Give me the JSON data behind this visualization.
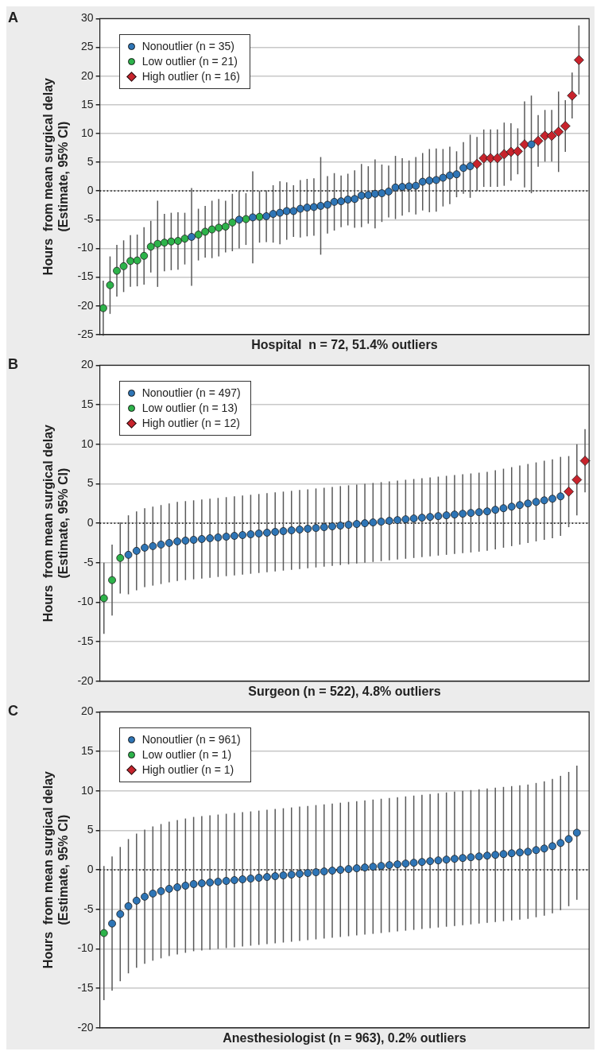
{
  "chart_data": [
    {
      "type": "scatter",
      "title": "A",
      "xlabel": "Hospital  n = 72, 51.4% outliers",
      "ylabel": "Hours  from mean surgical delay\n(Estimate, 95% CI)",
      "categories": [
        null,
        null,
        null,
        null,
        null,
        null,
        null,
        null,
        null,
        null,
        null,
        null,
        null,
        null,
        null,
        null,
        null,
        null,
        null,
        null,
        null,
        null,
        null,
        null,
        null,
        null,
        null,
        null,
        null,
        null,
        null,
        null,
        null,
        null,
        null,
        null,
        null,
        null,
        null,
        null,
        null,
        null,
        null,
        null,
        null,
        null,
        null,
        null,
        null,
        null,
        null,
        null,
        null,
        null,
        null,
        null,
        null,
        null,
        null,
        null,
        null,
        null,
        null,
        null,
        null,
        null,
        null,
        null,
        null,
        null,
        null,
        null
      ],
      "ylim": [
        -25,
        30
      ],
      "yticks": [
        -25,
        -20,
        -15,
        -10,
        -5,
        0,
        5,
        10,
        15,
        20,
        25,
        30
      ],
      "tick_labels": "y",
      "grid": "y",
      "legend": "top left",
      "ref_lines": [
        {
          "axis": "y",
          "value": 0,
          "line_style": "dotted",
          "color": "#222222"
        }
      ],
      "series": [
        {
          "name": "Nonoutlier (n = 35)",
          "color": "#2e75b6",
          "marker": "circle",
          "values": [
            null,
            null,
            null,
            null,
            null,
            null,
            null,
            null,
            null,
            null,
            null,
            null,
            null,
            -8.0,
            null,
            null,
            null,
            null,
            null,
            null,
            -5.0,
            null,
            -4.6,
            null,
            -4.4,
            -4.0,
            -3.8,
            -3.5,
            -3.5,
            -3.1,
            -2.9,
            -2.8,
            -2.6,
            -2.4,
            -1.9,
            -1.8,
            -1.5,
            -1.4,
            -0.8,
            -0.7,
            -0.5,
            -0.4,
            -0.1,
            0.6,
            0.7,
            0.8,
            0.9,
            1.6,
            1.8,
            1.9,
            2.3,
            2.7,
            2.9,
            4.0,
            4.3,
            null,
            null,
            null,
            null,
            null,
            null,
            null,
            null,
            8.1,
            null,
            null,
            null,
            null,
            null,
            null,
            null,
            null
          ],
          "errors": [
            null,
            null,
            null,
            null,
            null,
            null,
            null,
            null,
            null,
            null,
            null,
            null,
            null,
            8.5,
            null,
            null,
            null,
            null,
            null,
            null,
            5,
            null,
            8,
            null,
            4.5,
            5,
            5.5,
            5,
            4.5,
            5,
            5,
            5,
            8.5,
            5,
            5,
            4.5,
            4.5,
            5,
            5.5,
            5,
            6,
            5,
            4.5,
            5.5,
            5,
            4.5,
            5,
            5,
            5.5,
            5.5,
            5,
            5,
            4,
            4.5,
            5.5,
            null,
            null,
            null,
            null,
            null,
            null,
            null,
            null,
            8.5,
            null,
            null,
            null,
            null,
            null,
            null,
            null,
            null
          ]
        },
        {
          "name": "Low outlier (n = 21)",
          "color": "#2db34a",
          "marker": "circle",
          "values": [
            -20.4,
            -16.4,
            -13.9,
            -13.1,
            -12.2,
            -12.1,
            -11.3,
            -9.7,
            -9.2,
            -9.0,
            -8.8,
            -8.7,
            -8.3,
            null,
            -7.6,
            -7.1,
            -6.7,
            -6.4,
            -6.2,
            -5.5,
            null,
            -4.9,
            null,
            -4.5,
            null,
            null,
            null,
            null,
            null,
            null,
            null,
            null,
            null,
            null,
            null,
            null,
            null,
            null,
            null,
            null,
            null,
            null,
            null,
            null,
            null,
            null,
            null,
            null,
            null,
            null,
            null,
            null,
            null,
            null,
            null,
            null,
            null,
            null,
            null,
            null,
            null,
            null,
            null,
            null,
            null,
            null,
            null,
            null,
            null,
            null,
            null,
            null
          ],
          "errors": [
            4.8,
            5,
            4.5,
            4.5,
            4.5,
            4.5,
            5,
            4.5,
            7.5,
            5,
            5,
            5,
            4.5,
            null,
            4.5,
            4.5,
            5,
            5,
            4.5,
            5,
            null,
            4.5,
            null,
            4.5,
            null,
            null,
            null,
            null,
            null,
            null,
            null,
            null,
            null,
            null,
            null,
            null,
            null,
            null,
            null,
            null,
            null,
            null,
            null,
            null,
            null,
            null,
            null,
            null,
            null,
            null,
            null,
            null,
            null,
            null,
            null,
            null,
            null,
            null,
            null,
            null,
            null,
            null,
            null,
            null,
            null,
            null,
            null,
            null,
            null,
            null,
            null,
            null
          ]
        },
        {
          "name": "High outlier (n = 16)",
          "color": "#c8232c",
          "marker": "diamond",
          "values": [
            null,
            null,
            null,
            null,
            null,
            null,
            null,
            null,
            null,
            null,
            null,
            null,
            null,
            null,
            null,
            null,
            null,
            null,
            null,
            null,
            null,
            null,
            null,
            null,
            null,
            null,
            null,
            null,
            null,
            null,
            null,
            null,
            null,
            null,
            null,
            null,
            null,
            null,
            null,
            null,
            null,
            null,
            null,
            null,
            null,
            null,
            null,
            null,
            null,
            null,
            null,
            null,
            null,
            null,
            null,
            4.7,
            5.7,
            5.7,
            5.7,
            6.4,
            6.8,
            6.9,
            8.1,
            null,
            8.7,
            9.6,
            9.6,
            10.3,
            11.3,
            16.6,
            22.8,
            null
          ],
          "errors": [
            null,
            null,
            null,
            null,
            null,
            null,
            null,
            null,
            null,
            null,
            null,
            null,
            null,
            null,
            null,
            null,
            null,
            null,
            null,
            null,
            null,
            null,
            null,
            null,
            null,
            null,
            null,
            null,
            null,
            null,
            null,
            null,
            null,
            null,
            null,
            null,
            null,
            null,
            null,
            null,
            null,
            null,
            null,
            null,
            null,
            null,
            null,
            null,
            null,
            null,
            null,
            null,
            null,
            null,
            null,
            4.7,
            5,
            5,
            5,
            5.5,
            5,
            4,
            7.5,
            null,
            4.5,
            4.5,
            4.5,
            7,
            4.5,
            4,
            6,
            null
          ]
        }
      ]
    },
    {
      "type": "scatter",
      "title": "B",
      "xlabel": "Surgeon (n = 522), 4.8% outliers",
      "ylabel": "Hours  from mean surgical delay\n(Estimate, 95% CI)",
      "categories": [
        null,
        null,
        null,
        null,
        null,
        null,
        null,
        null,
        null,
        null,
        null,
        null,
        null,
        null,
        null,
        null,
        null,
        null,
        null,
        null,
        null,
        null,
        null,
        null,
        null,
        null,
        null,
        null,
        null,
        null,
        null,
        null,
        null,
        null,
        null,
        null,
        null,
        null,
        null,
        null,
        null,
        null,
        null,
        null,
        null,
        null,
        null,
        null,
        null,
        null,
        null,
        null,
        null,
        null,
        null,
        null,
        null,
        null,
        null,
        null
      ],
      "ylim": [
        -20,
        20
      ],
      "yticks": [
        -20,
        -15,
        -10,
        -5,
        0,
        5,
        10,
        15,
        20
      ],
      "tick_labels": "y",
      "grid": "y",
      "legend": "top left",
      "ref_lines": [
        {
          "axis": "y",
          "value": 0,
          "line_style": "dotted",
          "color": "#222222"
        }
      ],
      "series": [
        {
          "name": "Nonoutlier (n = 497)",
          "color": "#2e75b6",
          "marker": "circle",
          "values": [
            null,
            null,
            null,
            -4.0,
            -3.5,
            -3.1,
            -2.9,
            -2.7,
            -2.5,
            -2.3,
            -2.2,
            -2.1,
            -2.0,
            -1.9,
            -1.8,
            -1.7,
            -1.6,
            -1.5,
            -1.4,
            -1.3,
            -1.2,
            -1.1,
            -1.0,
            -0.9,
            -0.8,
            -0.7,
            -0.6,
            -0.5,
            -0.4,
            -0.3,
            -0.2,
            -0.1,
            0.0,
            0.1,
            0.2,
            0.3,
            0.4,
            0.5,
            0.6,
            0.7,
            0.8,
            0.9,
            1.0,
            1.1,
            1.2,
            1.3,
            1.4,
            1.5,
            1.7,
            1.9,
            2.1,
            2.3,
            2.5,
            2.7,
            2.9,
            3.1,
            3.4,
            null,
            null,
            null
          ],
          "errors": [
            null,
            null,
            null,
            5,
            5,
            5,
            5,
            5,
            5,
            5,
            5,
            5,
            5,
            5,
            5,
            5,
            5,
            5,
            5,
            5,
            5,
            5,
            5,
            5,
            5,
            5,
            5,
            5,
            5,
            5,
            5,
            5,
            5,
            5,
            5,
            5,
            5,
            5,
            5,
            5,
            5,
            5,
            5,
            5,
            5,
            5,
            5,
            5,
            5,
            5,
            5,
            5,
            5,
            5,
            5,
            5,
            5,
            null,
            null,
            null
          ]
        },
        {
          "name": "Low outlier (n = 13)",
          "color": "#2db34a",
          "marker": "circle",
          "values": [
            -9.5,
            -7.2,
            -4.4,
            null,
            null,
            null,
            null,
            null,
            null,
            null,
            null,
            null,
            null,
            null,
            null,
            null,
            null,
            null,
            null,
            null,
            null,
            null,
            null,
            null,
            null,
            null,
            null,
            null,
            null,
            null,
            null,
            null,
            null,
            null,
            null,
            null,
            null,
            null,
            null,
            null,
            null,
            null,
            null,
            null,
            null,
            null,
            null,
            null,
            null,
            null,
            null,
            null,
            null,
            null,
            null,
            null,
            null,
            null,
            null,
            null
          ],
          "errors": [
            4.5,
            4.5,
            4.5,
            null,
            null,
            null,
            null,
            null,
            null,
            null,
            null,
            null,
            null,
            null,
            null,
            null,
            null,
            null,
            null,
            null,
            null,
            null,
            null,
            null,
            null,
            null,
            null,
            null,
            null,
            null,
            null,
            null,
            null,
            null,
            null,
            null,
            null,
            null,
            null,
            null,
            null,
            null,
            null,
            null,
            null,
            null,
            null,
            null,
            null,
            null,
            null,
            null,
            null,
            null,
            null,
            null,
            null,
            null,
            null,
            null
          ]
        },
        {
          "name": "High outlier (n = 12)",
          "color": "#c8232c",
          "marker": "diamond",
          "values": [
            null,
            null,
            null,
            null,
            null,
            null,
            null,
            null,
            null,
            null,
            null,
            null,
            null,
            null,
            null,
            null,
            null,
            null,
            null,
            null,
            null,
            null,
            null,
            null,
            null,
            null,
            null,
            null,
            null,
            null,
            null,
            null,
            null,
            null,
            null,
            null,
            null,
            null,
            null,
            null,
            null,
            null,
            null,
            null,
            null,
            null,
            null,
            null,
            null,
            null,
            null,
            null,
            null,
            null,
            null,
            null,
            null,
            4.0,
            5.5,
            7.9
          ],
          "errors": [
            null,
            null,
            null,
            null,
            null,
            null,
            null,
            null,
            null,
            null,
            null,
            null,
            null,
            null,
            null,
            null,
            null,
            null,
            null,
            null,
            null,
            null,
            null,
            null,
            null,
            null,
            null,
            null,
            null,
            null,
            null,
            null,
            null,
            null,
            null,
            null,
            null,
            null,
            null,
            null,
            null,
            null,
            null,
            null,
            null,
            null,
            null,
            null,
            null,
            null,
            null,
            null,
            null,
            null,
            null,
            null,
            null,
            4.5,
            4.5,
            4
          ]
        }
      ]
    },
    {
      "type": "scatter",
      "title": "C",
      "xlabel": "Anesthesiologist (n = 963), 0.2% outliers",
      "ylabel": "Hours  from mean surgical delay\n(Estimate, 95% CI)",
      "categories": [
        null,
        null,
        null,
        null,
        null,
        null,
        null,
        null,
        null,
        null,
        null,
        null,
        null,
        null,
        null,
        null,
        null,
        null,
        null,
        null,
        null,
        null,
        null,
        null,
        null,
        null,
        null,
        null,
        null,
        null,
        null,
        null,
        null,
        null,
        null,
        null,
        null,
        null,
        null,
        null,
        null,
        null,
        null,
        null,
        null,
        null,
        null,
        null,
        null,
        null,
        null,
        null,
        null,
        null,
        null,
        null,
        null,
        null,
        null,
        null
      ],
      "ylim": [
        -20,
        20
      ],
      "yticks": [
        -20,
        -15,
        -10,
        -5,
        0,
        5,
        10,
        15,
        20
      ],
      "tick_labels": "y",
      "grid": "y",
      "legend": "top left",
      "ref_lines": [
        {
          "axis": "y",
          "value": 0,
          "line_style": "dotted",
          "color": "#222222"
        }
      ],
      "series": [
        {
          "name": "Nonoutlier (n = 961)",
          "color": "#2e75b6",
          "marker": "circle",
          "values": [
            null,
            -6.8,
            -5.6,
            -4.6,
            -3.9,
            -3.4,
            -3.0,
            -2.7,
            -2.4,
            -2.2,
            -2.0,
            -1.8,
            -1.7,
            -1.6,
            -1.5,
            -1.4,
            -1.3,
            -1.2,
            -1.1,
            -1.0,
            -0.9,
            -0.8,
            -0.7,
            -0.6,
            -0.5,
            -0.4,
            -0.3,
            -0.2,
            -0.1,
            0.0,
            0.1,
            0.2,
            0.3,
            0.4,
            0.5,
            0.6,
            0.7,
            0.8,
            0.9,
            1.0,
            1.1,
            1.2,
            1.3,
            1.4,
            1.5,
            1.6,
            1.7,
            1.8,
            1.9,
            2.0,
            2.1,
            2.2,
            2.3,
            2.5,
            2.7,
            3.0,
            3.4,
            3.9,
            4.7,
            null
          ],
          "errors": [
            null,
            8.5,
            8.5,
            8.5,
            8.5,
            8.5,
            8.5,
            8.5,
            8.5,
            8.5,
            8.5,
            8.5,
            8.5,
            8.5,
            8.5,
            8.5,
            8.5,
            8.5,
            8.5,
            8.5,
            8.5,
            8.5,
            8.5,
            8.5,
            8.5,
            8.5,
            8.5,
            8.5,
            8.5,
            8.5,
            8.5,
            8.5,
            8.5,
            8.5,
            8.5,
            8.5,
            8.5,
            8.5,
            8.5,
            8.5,
            8.5,
            8.5,
            8.5,
            8.5,
            8.5,
            8.5,
            8.5,
            8.5,
            8.5,
            8.5,
            8.5,
            8.5,
            8.5,
            8.5,
            8.5,
            8.5,
            8.5,
            8.5,
            8.5,
            null
          ]
        },
        {
          "name": "Low outlier (n = 1)",
          "color": "#2db34a",
          "marker": "circle",
          "values": [
            -8.0,
            null,
            null,
            null,
            null,
            null,
            null,
            null,
            null,
            null,
            null,
            null,
            null,
            null,
            null,
            null,
            null,
            null,
            null,
            null,
            null,
            null,
            null,
            null,
            null,
            null,
            null,
            null,
            null,
            null,
            null,
            null,
            null,
            null,
            null,
            null,
            null,
            null,
            null,
            null,
            null,
            null,
            null,
            null,
            null,
            null,
            null,
            null,
            null,
            null,
            null,
            null,
            null,
            null,
            null,
            null,
            null,
            null,
            null,
            null
          ],
          "errors": [
            8.5,
            null,
            null,
            null,
            null,
            null,
            null,
            null,
            null,
            null,
            null,
            null,
            null,
            null,
            null,
            null,
            null,
            null,
            null,
            null,
            null,
            null,
            null,
            null,
            null,
            null,
            null,
            null,
            null,
            null,
            null,
            null,
            null,
            null,
            null,
            null,
            null,
            null,
            null,
            null,
            null,
            null,
            null,
            null,
            null,
            null,
            null,
            null,
            null,
            null,
            null,
            null,
            null,
            null,
            null,
            null,
            null,
            null,
            null,
            null
          ]
        },
        {
          "name": "High outlier (n = 1)",
          "color": "#c8232c",
          "marker": "diamond",
          "values": [
            null,
            null,
            null,
            null,
            null,
            null,
            null,
            null,
            null,
            null,
            null,
            null,
            null,
            null,
            null,
            null,
            null,
            null,
            null,
            null,
            null,
            null,
            null,
            null,
            null,
            null,
            null,
            null,
            null,
            null,
            null,
            null,
            null,
            null,
            null,
            null,
            null,
            null,
            null,
            null,
            null,
            null,
            null,
            null,
            null,
            null,
            null,
            null,
            null,
            null,
            null,
            null,
            null,
            null,
            null,
            null,
            null,
            null,
            null,
            null
          ]
        }
      ]
    }
  ]
}
